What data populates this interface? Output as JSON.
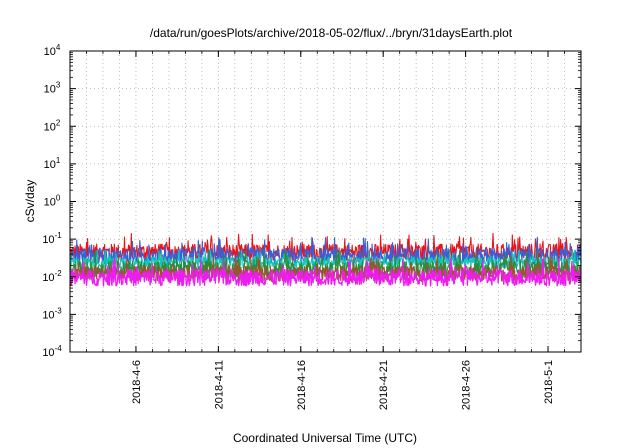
{
  "chart_data": {
    "type": "line",
    "title": "/data/run/goesPlots/archive/2018-05-02/flux/../bryn/31daysEarth.plot",
    "xlabel": "Coordinated Universal Time (UTC)",
    "ylabel": "cSv/day",
    "yscale": "log",
    "ylim": [
      0.0001,
      10000
    ],
    "xlim": [
      "2018-04-02",
      "2018-05-03"
    ],
    "grid": true,
    "y_ticks": [
      {
        "base": "10",
        "exp": "-4"
      },
      {
        "base": "10",
        "exp": "-3"
      },
      {
        "base": "10",
        "exp": "-2"
      },
      {
        "base": "10",
        "exp": "-1"
      },
      {
        "base": "10",
        "exp": "0"
      },
      {
        "base": "10",
        "exp": "1"
      },
      {
        "base": "10",
        "exp": "2"
      },
      {
        "base": "10",
        "exp": "3"
      },
      {
        "base": "10",
        "exp": "4"
      }
    ],
    "x_ticks": [
      "2018-4-6",
      "2018-4-11",
      "2018-4-16",
      "2018-4-21",
      "2018-4-26",
      "2018-5-1"
    ],
    "series": [
      {
        "color": "#e8141c",
        "mean": 0.045,
        "spread": 0.22
      },
      {
        "color": "#3a5fd6",
        "mean": 0.035,
        "spread": 0.22
      },
      {
        "color": "#12c7b4",
        "mean": 0.024,
        "spread": 0.15
      },
      {
        "color": "#2e8b3a",
        "mean": 0.016,
        "spread": 0.22
      },
      {
        "color": "#a0522d",
        "mean": 0.012,
        "spread": 0.2
      },
      {
        "color": "#ee1cf2",
        "mean": 0.0095,
        "spread": 0.22
      }
    ]
  }
}
